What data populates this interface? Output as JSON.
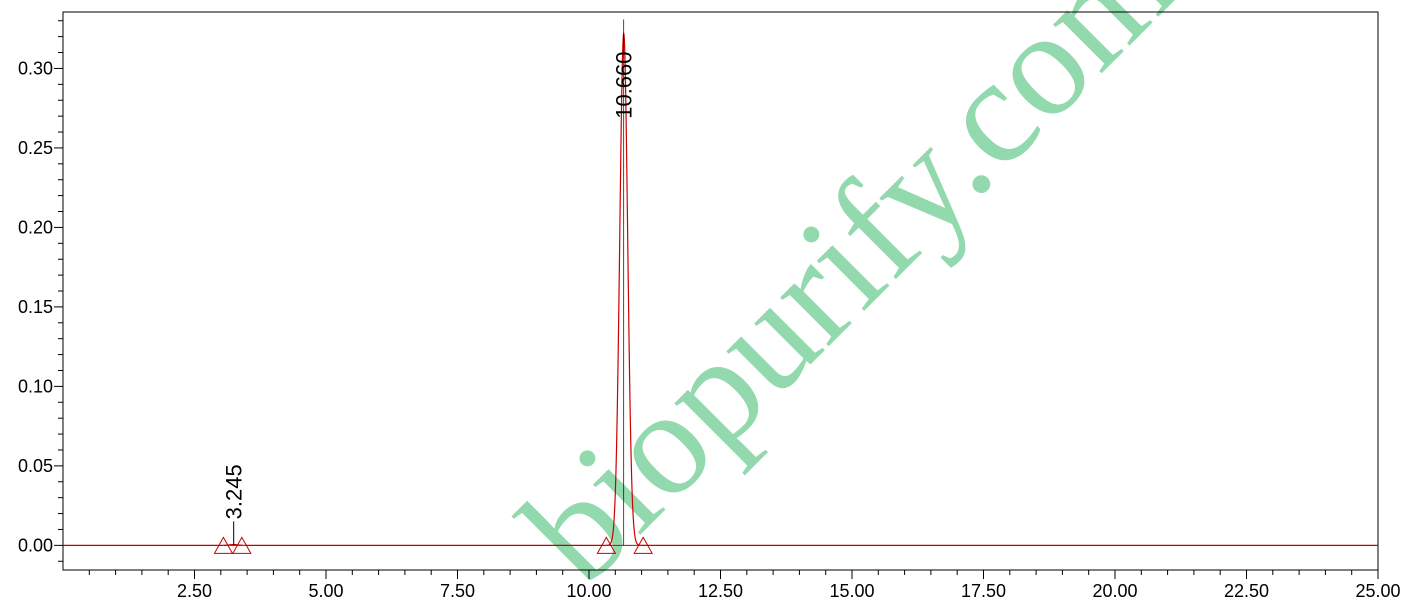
{
  "chart_data": {
    "type": "line",
    "title": "",
    "xlabel": "",
    "ylabel": "",
    "xlim": [
      0.0,
      25.0
    ],
    "ylim": [
      -0.0155,
      0.3355
    ],
    "x_ticks": [
      2.5,
      5.0,
      7.5,
      10.0,
      12.5,
      15.0,
      17.5,
      20.0,
      22.5,
      25.0
    ],
    "x_tick_labels": [
      "2.50",
      "5.00",
      "7.50",
      "10.00",
      "12.50",
      "15.00",
      "17.50",
      "20.00",
      "22.50",
      "25.00"
    ],
    "y_ticks": [
      0.0,
      0.05,
      0.1,
      0.15,
      0.2,
      0.25,
      0.3
    ],
    "y_tick_labels": [
      "0.00",
      "0.05",
      "0.10",
      "0.15",
      "0.20",
      "0.25",
      "0.30"
    ],
    "grid": false,
    "line_color": "#cc0000",
    "series": [
      {
        "peaks": [
          {
            "rt": 3.245,
            "height": 0.0005,
            "width": 0.08,
            "start": 3.05,
            "end": 3.4
          },
          {
            "rt": 10.66,
            "height": 0.322,
            "width": 0.075,
            "start": 10.33,
            "end": 11.03
          }
        ],
        "baseline": 0.0
      }
    ],
    "annotations": [
      {
        "text": "3.245",
        "x": 3.245,
        "y": 0.0005
      },
      {
        "text": "10.660",
        "x": 10.66,
        "y": 0.322
      }
    ]
  },
  "watermark": {
    "text": "biopurify.com",
    "color": "#7fd3a0"
  }
}
